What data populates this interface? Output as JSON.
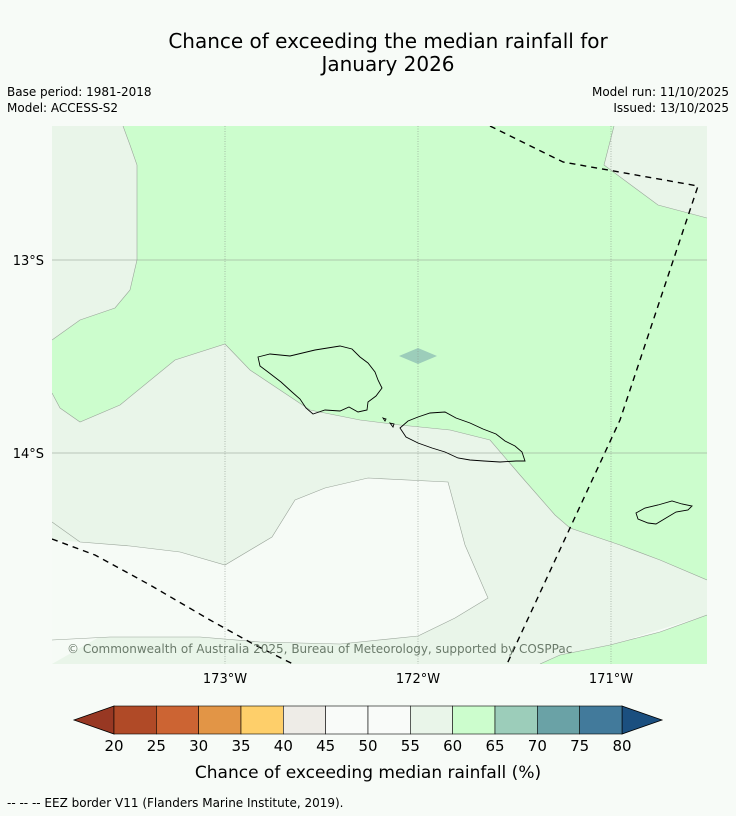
{
  "title": {
    "line1": "Chance of exceeding the median rainfall for",
    "line2": "January 2026"
  },
  "meta": {
    "base_period": "Base period: 1981-2018",
    "model": "Model: ACCESS-S2",
    "model_run": "Model run: 11/10/2025",
    "issued": "Issued: 13/10/2025"
  },
  "map": {
    "lat_labels": [
      "13°S",
      "14°S"
    ],
    "lon_labels": [
      "173°W",
      "172°W",
      "171°W"
    ],
    "copyright": "© Commonwealth of Australia 2025, Bureau of Meteorology, supported by COSPPac"
  },
  "colorbar": {
    "ticks": [
      "20",
      "25",
      "30",
      "35",
      "40",
      "45",
      "50",
      "55",
      "60",
      "65",
      "70",
      "75",
      "80"
    ],
    "colors": [
      "#b04a27",
      "#cc6433",
      "#e29546",
      "#fecf6a",
      "#eeece7",
      "#f9fbf9",
      "#f9fbf9",
      "#e9f5e9",
      "#ccfdcd",
      "#9ccdba",
      "#6aa2a6",
      "#427a9b"
    ],
    "under_color": "#983823",
    "over_color": "#1b4f7f",
    "label": "Chance of exceeding median rainfall (%)"
  },
  "footer": {
    "legend_line": "--  --  -- EEZ border V11 (Flanders Marine Institute, 2019)."
  }
}
